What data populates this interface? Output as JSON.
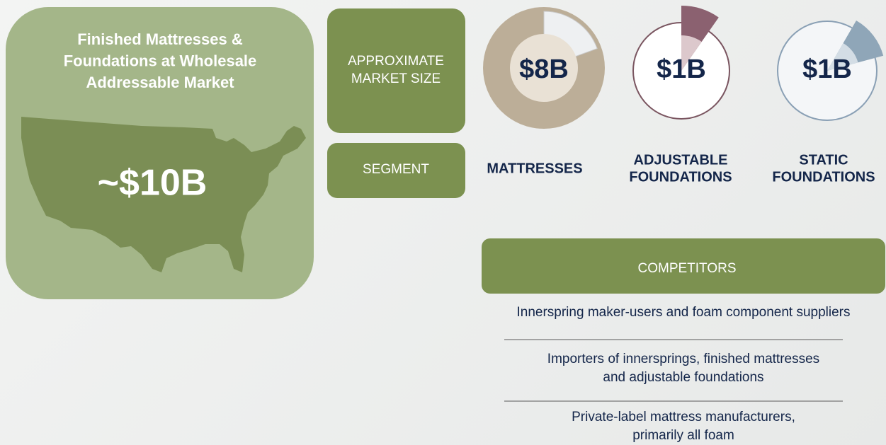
{
  "market": {
    "title_lines": [
      "Finished Mattresses &",
      "Foundations at Wholesale",
      "Addressable Market"
    ],
    "total": "~$10B"
  },
  "row_labels": {
    "market_size": [
      "APPROXIMATE",
      "MARKET SIZE"
    ],
    "segment": "SEGMENT"
  },
  "segments": [
    {
      "value": "$8B",
      "name": [
        "MATTRESSES"
      ]
    },
    {
      "value": "$1B",
      "name": [
        "ADJUSTABLE",
        "FOUNDATIONS"
      ]
    },
    {
      "value": "$1B",
      "name": [
        "STATIC",
        "FOUNDATIONS"
      ]
    }
  ],
  "competitors": {
    "header": "COMPETITORS",
    "items": [
      [
        "Innerspring maker-users and foam component suppliers"
      ],
      [
        "Importers of innersprings, finished mattresses",
        "and adjustable foundations"
      ],
      [
        "Private-label mattress manufacturers,",
        "primarily all foam"
      ]
    ]
  }
}
